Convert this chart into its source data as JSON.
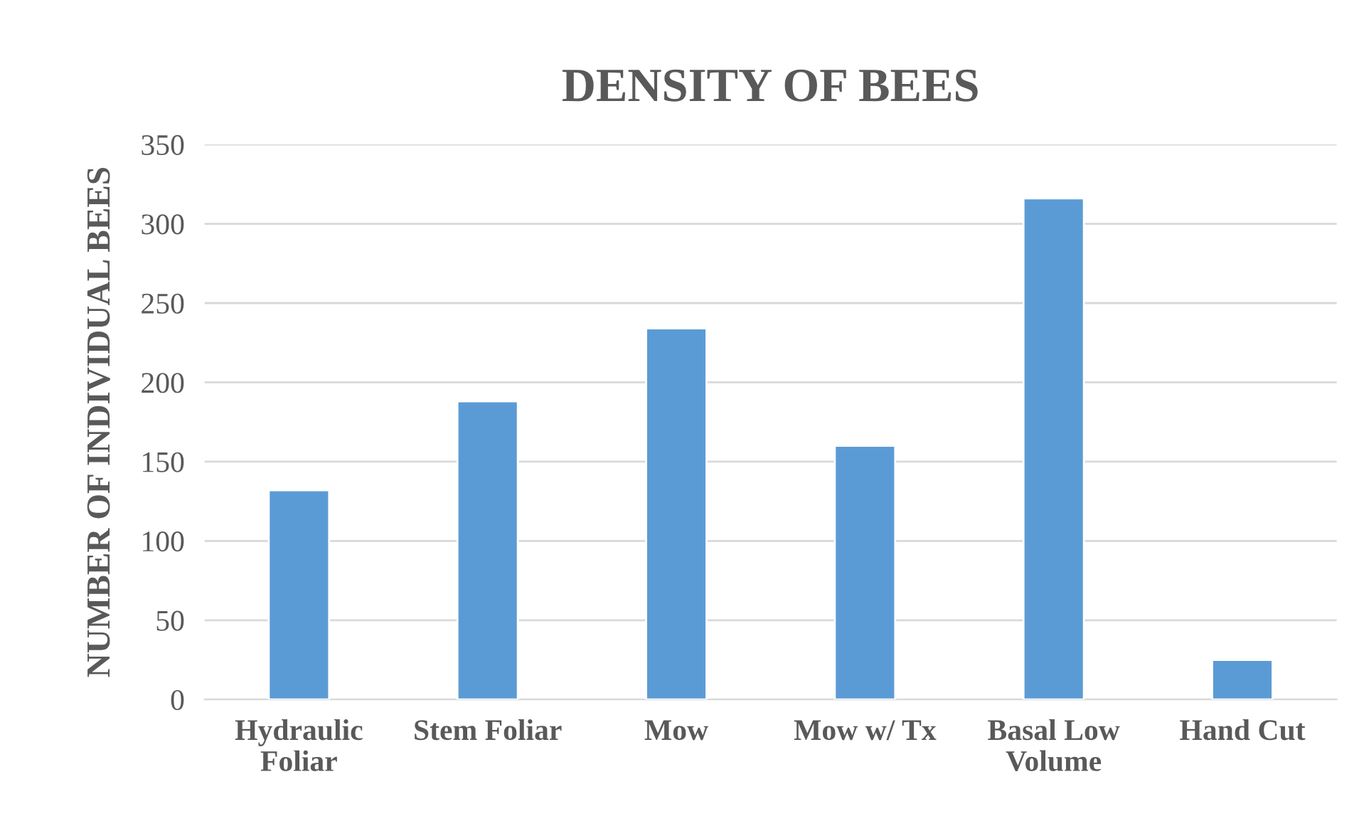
{
  "chart_data": {
    "type": "bar",
    "title": "DENSITY OF BEES",
    "ylabel": "NUMBER OF INDIVIDUAL BEES",
    "categories": [
      "Hydraulic\nFoliar",
      "Stem Foliar",
      "Mow",
      "Mow w/ Tx",
      "Basal Low\nVolume",
      "Hand Cut"
    ],
    "series": [
      {
        "color": "#5b9bd5",
        "values": [
          132,
          188,
          234,
          160,
          316,
          25
        ]
      }
    ],
    "ylim": [
      0,
      350
    ],
    "yticks": [
      0,
      50,
      100,
      150,
      200,
      250,
      300,
      350
    ],
    "grid": "y",
    "legend": false
  }
}
